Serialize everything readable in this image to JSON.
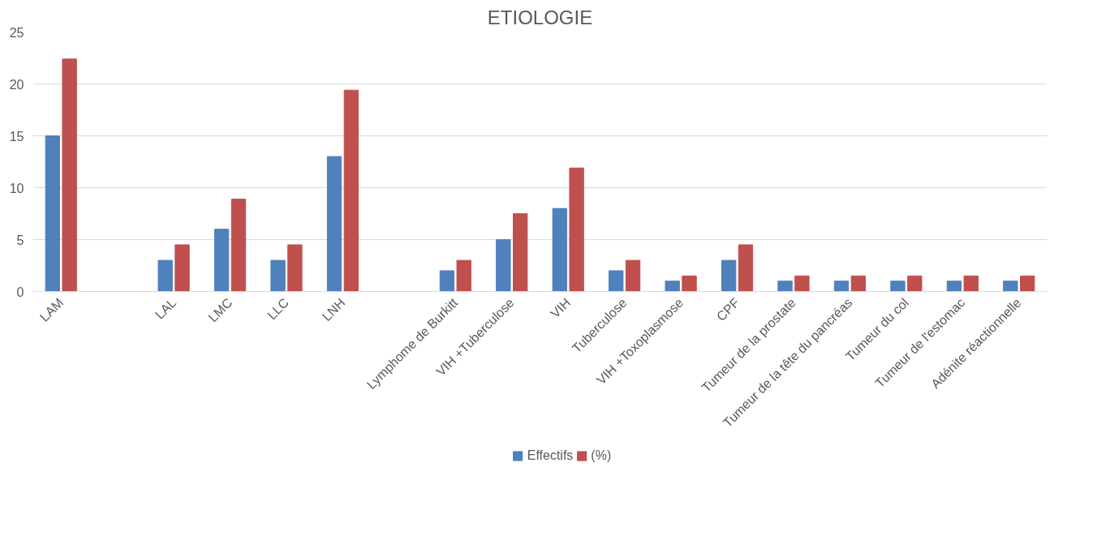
{
  "chart_data": {
    "type": "bar",
    "title": "ETIOLOGIE",
    "categories": [
      "LAM",
      null,
      "LAL",
      "LMC",
      "LLC",
      "LNH",
      null,
      "Lymphome de Burkitt",
      "VIH +Tuberculose",
      "VIH",
      "Tuberculose",
      "VIH +Toxoplasmose",
      "CPF",
      "Tumeur de la prostate",
      "Tumeur de la tête du pancréas",
      "Tumeur du col",
      "Tumeur de l'estomac",
      "Adénite réactionnelle"
    ],
    "series": [
      {
        "name": "Effectifs",
        "color": "#4f81bd",
        "values": [
          15,
          null,
          3,
          6,
          3,
          13,
          null,
          2,
          5,
          8,
          2,
          1,
          3,
          1,
          1,
          1,
          1,
          1
        ]
      },
      {
        "name": "(%)",
        "color": "#c0504d",
        "values": [
          22.4,
          null,
          4.5,
          8.9,
          4.5,
          19.4,
          null,
          3,
          7.5,
          11.9,
          3,
          1.5,
          4.5,
          1.5,
          1.5,
          1.5,
          1.5,
          1.5
        ]
      }
    ],
    "ylim": [
      0,
      25
    ],
    "yticks": [
      0,
      5,
      10,
      15,
      20,
      25
    ],
    "grid": "y",
    "legend": "bottom"
  }
}
